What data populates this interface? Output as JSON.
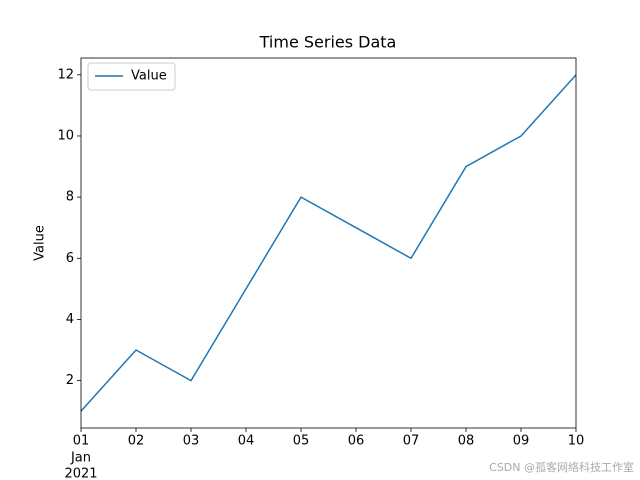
{
  "chart_data": {
    "type": "line",
    "title": "Time Series Data",
    "ylabel": "Value",
    "x": [
      "2021-01-01",
      "2021-01-02",
      "2021-01-03",
      "2021-01-04",
      "2021-01-05",
      "2021-01-06",
      "2021-01-07",
      "2021-01-08",
      "2021-01-09",
      "2021-01-10"
    ],
    "series": [
      {
        "name": "Value",
        "color": "#1f77b4",
        "values": [
          1,
          3,
          2,
          5,
          8,
          7,
          6,
          9,
          10,
          12
        ]
      }
    ],
    "xlim": [
      "2021-01-01",
      "2021-01-10"
    ],
    "xticks": [
      {
        "value": "2021-01-01",
        "label": "01"
      },
      {
        "value": "2021-01-02",
        "label": "02"
      },
      {
        "value": "2021-01-03",
        "label": "03"
      },
      {
        "value": "2021-01-04",
        "label": "04"
      },
      {
        "value": "2021-01-05",
        "label": "05"
      },
      {
        "value": "2021-01-06",
        "label": "06"
      },
      {
        "value": "2021-01-07",
        "label": "07"
      },
      {
        "value": "2021-01-08",
        "label": "08"
      },
      {
        "value": "2021-01-09",
        "label": "09"
      },
      {
        "value": "2021-01-10",
        "label": "10"
      }
    ],
    "x_offset_labels": [
      "Jan",
      "2021"
    ],
    "ylim": [
      0.45,
      12.55
    ],
    "yticks": [
      2,
      4,
      6,
      8,
      10,
      12
    ],
    "legend": "upper left",
    "grid": false
  },
  "watermark": "CSDN @孤客网络科技工作室"
}
